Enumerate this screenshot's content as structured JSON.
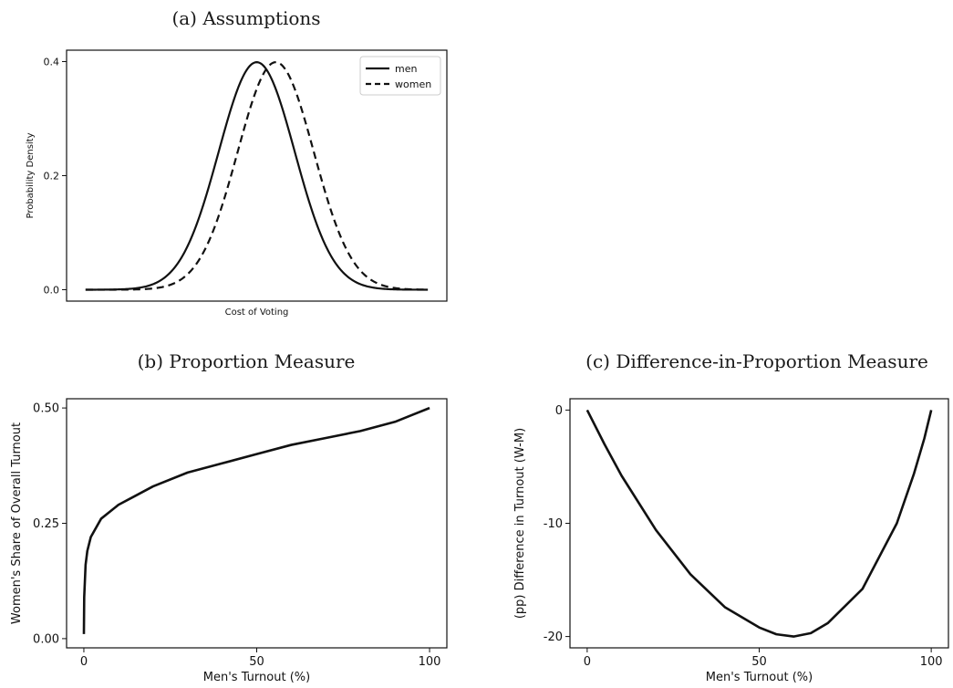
{
  "chart_data": [
    {
      "type": "line",
      "title": "(a) Assumptions",
      "xlabel": "Cost of Voting",
      "ylabel": "Probability Density",
      "xlim": [
        -5.0,
        5.0
      ],
      "ylim": [
        -0.02,
        0.42
      ],
      "x_ticks_shown": false,
      "y_ticks": [
        0.0,
        0.2,
        0.4
      ],
      "y_tick_labels": [
        "0.0",
        "0.2",
        "0.4"
      ],
      "legend_position": "top-right",
      "series": [
        {
          "name": "men",
          "style": "solid",
          "mean": 0.0,
          "sd": 1.0
        },
        {
          "name": "women",
          "style": "dashed",
          "mean": 0.5,
          "sd": 1.0
        }
      ],
      "grid": false
    },
    {
      "type": "line",
      "title": "(b) Proportion Measure",
      "xlabel": "Men's Turnout (%)",
      "ylabel": "Women's Share of Overall Turnout",
      "xlim": [
        -5,
        105
      ],
      "ylim": [
        -0.02,
        0.52
      ],
      "x_ticks": [
        0,
        50,
        100
      ],
      "y_ticks": [
        0.0,
        0.25,
        0.5
      ],
      "y_tick_labels": [
        "0.00",
        "0.25",
        "0.50"
      ],
      "series": [
        {
          "x": [
            0.01,
            0.1,
            0.5,
            1,
            2,
            5,
            10,
            15,
            20,
            30,
            40,
            50,
            60,
            70,
            80,
            90,
            95,
            100
          ],
          "values": [
            0.01,
            0.09,
            0.16,
            0.19,
            0.22,
            0.26,
            0.29,
            0.31,
            0.33,
            0.36,
            0.38,
            0.4,
            0.42,
            0.435,
            0.45,
            0.47,
            0.485,
            0.5
          ]
        }
      ],
      "grid": false
    },
    {
      "type": "line",
      "title": "(c) Difference-in-Proportion Measure",
      "xlabel": "Men's Turnout (%)",
      "ylabel": "(pp) Difference in Turnout (W-M)",
      "xlim": [
        -5,
        105
      ],
      "ylim": [
        -21,
        1
      ],
      "x_ticks": [
        0,
        50,
        100
      ],
      "y_ticks": [
        0,
        -10,
        -20
      ],
      "y_tick_labels": [
        "0",
        "-10",
        "-20"
      ],
      "series": [
        {
          "x": [
            0,
            5,
            10,
            20,
            30,
            40,
            50,
            55,
            60,
            65,
            70,
            80,
            90,
            95,
            98,
            100
          ],
          "values": [
            0,
            -3.0,
            -5.8,
            -10.6,
            -14.5,
            -17.4,
            -19.2,
            -19.8,
            -20.0,
            -19.7,
            -18.8,
            -15.8,
            -10.0,
            -5.6,
            -2.5,
            0
          ]
        }
      ],
      "grid": false
    }
  ]
}
